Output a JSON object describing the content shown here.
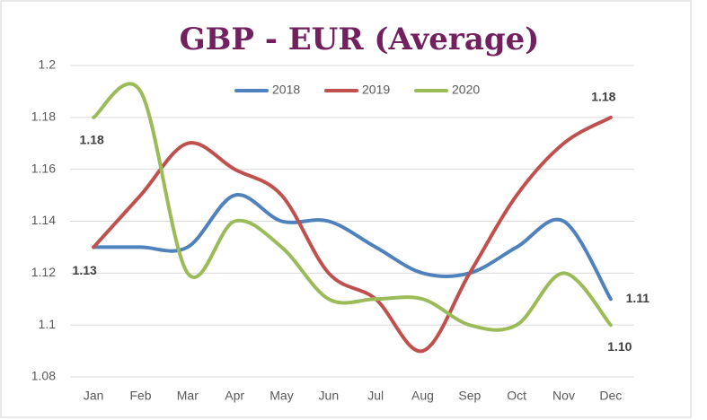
{
  "chart_data": {
    "type": "line",
    "title": "GBP - EUR (Average)",
    "categories": [
      "Jan",
      "Feb",
      "Mar",
      "Apr",
      "May",
      "Jun",
      "Jul",
      "Aug",
      "Sep",
      "Oct",
      "Nov",
      "Dec"
    ],
    "series": [
      {
        "name": "2018",
        "color": "#4f81bd",
        "values": [
          1.13,
          1.13,
          1.13,
          1.15,
          1.14,
          1.14,
          1.13,
          1.12,
          1.12,
          1.13,
          1.14,
          1.11
        ],
        "value_labels": [
          "1.13",
          null,
          null,
          null,
          null,
          null,
          null,
          null,
          null,
          null,
          null,
          "1.11"
        ]
      },
      {
        "name": "2019",
        "color": "#c0504d",
        "values": [
          1.13,
          1.15,
          1.17,
          1.16,
          1.15,
          1.12,
          1.11,
          1.09,
          1.12,
          1.15,
          1.17,
          1.18
        ],
        "value_labels": [
          null,
          null,
          null,
          null,
          null,
          null,
          null,
          null,
          null,
          null,
          null,
          "1.18"
        ]
      },
      {
        "name": "2020",
        "color": "#9bbb59",
        "values": [
          1.18,
          1.19,
          1.12,
          1.14,
          1.13,
          1.11,
          1.11,
          1.11,
          1.1,
          1.1,
          1.12,
          1.1
        ],
        "value_labels": [
          "1.18",
          null,
          null,
          null,
          null,
          null,
          null,
          null,
          null,
          null,
          null,
          "1.10"
        ]
      }
    ],
    "ylim": [
      1.08,
      1.2
    ],
    "yticks": [
      1.08,
      1.1,
      1.12,
      1.14,
      1.16,
      1.18,
      1.2
    ],
    "grid": true,
    "legend": "top"
  }
}
